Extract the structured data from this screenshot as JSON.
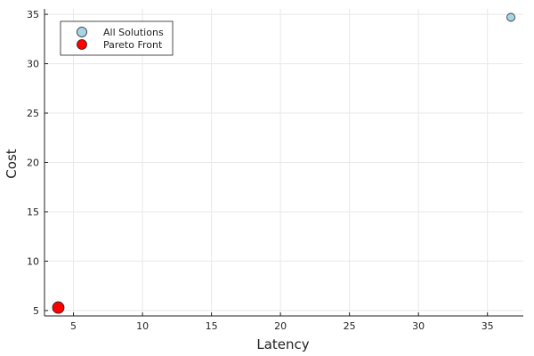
{
  "chart_data": {
    "type": "scatter",
    "title": "",
    "xlabel": "Latency",
    "ylabel": "Cost",
    "xlim": [
      2.9,
      37.6
    ],
    "ylim": [
      4.45,
      35.55
    ],
    "xticks": [
      5,
      10,
      15,
      20,
      25,
      30,
      35
    ],
    "yticks": [
      5,
      10,
      15,
      20,
      25,
      30,
      35
    ],
    "grid": true,
    "legend_position": "top-left",
    "series": [
      {
        "name": "All Solutions",
        "color": "#a7d5e6",
        "marker": "circle",
        "points": [
          [
            36.7,
            34.7
          ],
          [
            3.9,
            5.3
          ]
        ]
      },
      {
        "name": "Pareto Front",
        "color": "#ff0000",
        "marker": "circle",
        "points": [
          [
            3.9,
            5.3
          ]
        ]
      }
    ]
  }
}
